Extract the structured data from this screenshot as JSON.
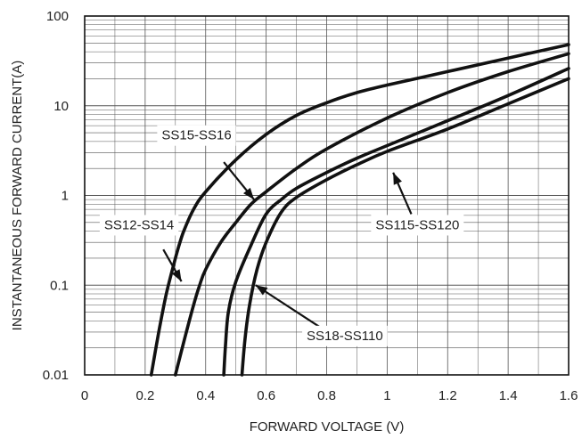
{
  "chart_data": {
    "type": "line",
    "title": "",
    "xlabel": "FORWARD VOLTAGE (V)",
    "ylabel": "INSTANTANEOUS FORWARD CURRENT(A)",
    "xlim": [
      0,
      1.6
    ],
    "ylim": [
      0.01,
      100
    ],
    "y_scale": "log",
    "grid": true,
    "x_ticks": [
      0,
      0.2,
      0.4,
      0.6,
      0.8,
      1,
      1.2,
      1.4,
      1.6
    ],
    "x_tick_labels": [
      "0",
      "0.2",
      "0.4",
      "0.6",
      "0.8",
      "1",
      "1.2",
      "1.4",
      "1.6"
    ],
    "y_ticks": [
      0.01,
      0.1,
      1,
      10,
      100
    ],
    "y_tick_labels": [
      "0.01",
      "0.1",
      "1",
      "10",
      "100"
    ],
    "line_color": "#111111",
    "grid_color": "#555555",
    "series": [
      {
        "name": "SS12-SS14",
        "x": [
          0.22,
          0.245,
          0.27,
          0.3,
          0.315,
          0.33,
          0.36,
          0.4,
          0.5,
          0.6,
          0.7,
          0.8,
          0.9,
          1.0,
          1.2,
          1.4,
          1.6
        ],
        "y": [
          0.01,
          0.03,
          0.08,
          0.2,
          0.3,
          0.42,
          0.7,
          1.1,
          2.5,
          4.8,
          7.8,
          10.8,
          14,
          17,
          24,
          34,
          48
        ]
      },
      {
        "name": "SS15-SS16",
        "x": [
          0.3,
          0.33,
          0.36,
          0.38,
          0.4,
          0.45,
          0.5,
          0.55,
          0.6,
          0.7,
          0.8,
          1.0,
          1.2,
          1.4,
          1.6
        ],
        "y": [
          0.01,
          0.025,
          0.06,
          0.1,
          0.15,
          0.3,
          0.5,
          0.8,
          1.1,
          2.0,
          3.3,
          7.3,
          14,
          24,
          38
        ]
      },
      {
        "name": "SS18-SS110",
        "x": [
          0.46,
          0.465,
          0.475,
          0.5,
          0.55,
          0.6,
          0.65,
          0.7,
          0.8,
          0.9,
          1.0,
          1.2,
          1.4,
          1.6
        ],
        "y": [
          0.01,
          0.02,
          0.05,
          0.11,
          0.28,
          0.62,
          0.9,
          1.2,
          1.8,
          2.6,
          3.6,
          6.8,
          13,
          26
        ]
      },
      {
        "name": "SS115-SS120",
        "x": [
          0.52,
          0.53,
          0.545,
          0.57,
          0.6,
          0.65,
          0.7,
          0.8,
          0.9,
          1.0,
          1.2,
          1.4,
          1.6
        ],
        "y": [
          0.01,
          0.025,
          0.06,
          0.15,
          0.3,
          0.65,
          0.95,
          1.5,
          2.2,
          3.1,
          5.5,
          10.5,
          20
        ]
      }
    ],
    "annotations": [
      {
        "text": "SS15-SS16",
        "series": "SS15-SS16",
        "text_at": [
          0.37,
          4.2
        ],
        "arrow_from": [
          0.46,
          2.35
        ],
        "arrow_to": [
          0.56,
          0.9
        ]
      },
      {
        "text": "SS12-SS14",
        "series": "SS12-SS14",
        "text_at": [
          0.18,
          0.42
        ],
        "arrow_from": [
          0.26,
          0.25
        ],
        "arrow_to": [
          0.32,
          0.11
        ]
      },
      {
        "text": "SS115-SS120",
        "series": "SS115-SS120",
        "text_at": [
          1.1,
          0.42
        ],
        "arrow_from": [
          1.08,
          0.62
        ],
        "arrow_to": [
          1.02,
          1.8
        ]
      },
      {
        "text": "SS18-SS110",
        "series": "SS18-SS110",
        "text_at": [
          0.86,
          0.0245
        ],
        "arrow_from": [
          0.79,
          0.032
        ],
        "arrow_to": [
          0.565,
          0.1
        ]
      }
    ]
  }
}
